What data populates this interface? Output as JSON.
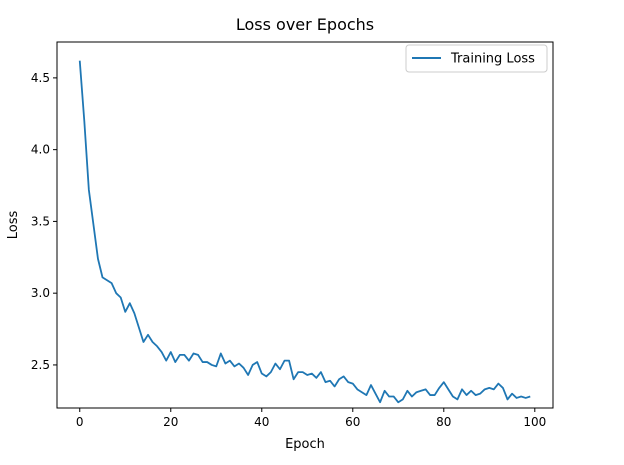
{
  "chart_data": {
    "type": "line",
    "title": "Loss over Epochs",
    "xlabel": "Epoch",
    "ylabel": "Loss",
    "xlim": [
      -5,
      104
    ],
    "ylim": [
      2.2,
      4.75
    ],
    "xticks": [
      0,
      20,
      40,
      60,
      80,
      100
    ],
    "yticks": [
      2.5,
      3.0,
      3.5,
      4.0,
      4.5
    ],
    "xtick_labels": [
      "0",
      "20",
      "40",
      "60",
      "80",
      "100"
    ],
    "ytick_labels": [
      "2.5",
      "3.0",
      "3.5",
      "4.0",
      "4.5"
    ],
    "grid": false,
    "legend": {
      "position": "top-right",
      "entries": [
        "Training Loss"
      ]
    },
    "series": [
      {
        "name": "Training Loss",
        "color": "#1f77b4",
        "x": [
          0,
          1,
          2,
          3,
          4,
          5,
          6,
          7,
          8,
          9,
          10,
          11,
          12,
          13,
          14,
          15,
          16,
          17,
          18,
          19,
          20,
          21,
          22,
          23,
          24,
          25,
          26,
          27,
          28,
          29,
          30,
          31,
          32,
          33,
          34,
          35,
          36,
          37,
          38,
          39,
          40,
          41,
          42,
          43,
          44,
          45,
          46,
          47,
          48,
          49,
          50,
          51,
          52,
          53,
          54,
          55,
          56,
          57,
          58,
          59,
          60,
          61,
          62,
          63,
          64,
          65,
          66,
          67,
          68,
          69,
          70,
          71,
          72,
          73,
          74,
          75,
          76,
          77,
          78,
          79,
          80,
          81,
          82,
          83,
          84,
          85,
          86,
          87,
          88,
          89,
          90,
          91,
          92,
          93,
          94,
          95,
          96,
          97,
          98,
          99
        ],
        "values": [
          4.62,
          4.2,
          3.72,
          3.48,
          3.24,
          3.11,
          3.09,
          3.07,
          3.0,
          2.97,
          2.87,
          2.93,
          2.86,
          2.76,
          2.66,
          2.71,
          2.66,
          2.63,
          2.59,
          2.53,
          2.59,
          2.52,
          2.57,
          2.57,
          2.53,
          2.58,
          2.57,
          2.52,
          2.52,
          2.5,
          2.49,
          2.58,
          2.51,
          2.53,
          2.49,
          2.51,
          2.48,
          2.43,
          2.5,
          2.52,
          2.44,
          2.42,
          2.45,
          2.51,
          2.47,
          2.53,
          2.53,
          2.4,
          2.45,
          2.45,
          2.43,
          2.44,
          2.41,
          2.45,
          2.38,
          2.39,
          2.35,
          2.4,
          2.42,
          2.38,
          2.37,
          2.33,
          2.31,
          2.29,
          2.36,
          2.3,
          2.24,
          2.32,
          2.28,
          2.28,
          2.24,
          2.26,
          2.32,
          2.28,
          2.31,
          2.32,
          2.33,
          2.29,
          2.29,
          2.34,
          2.38,
          2.33,
          2.28,
          2.26,
          2.33,
          2.29,
          2.32,
          2.29,
          2.3,
          2.33,
          2.34,
          2.33,
          2.37,
          2.34,
          2.26,
          2.3,
          2.27,
          2.28,
          2.27,
          2.28
        ]
      }
    ]
  }
}
